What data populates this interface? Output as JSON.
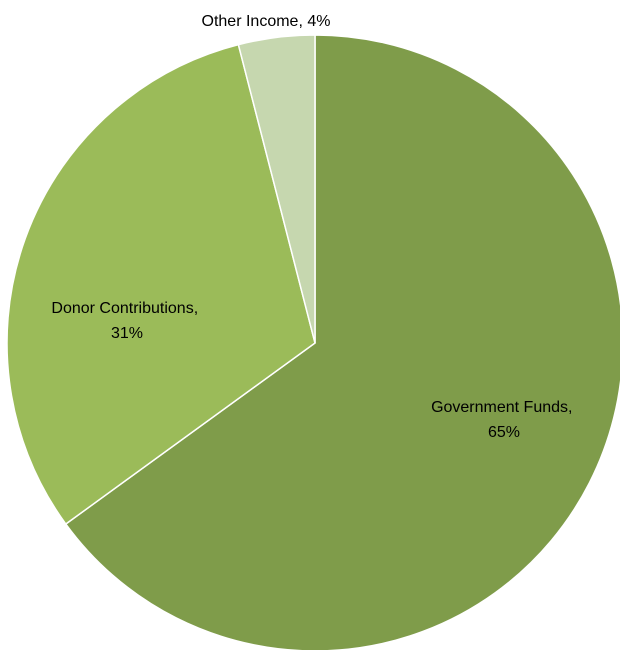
{
  "chart_data": {
    "type": "pie",
    "slices": [
      {
        "name": "Government Funds",
        "value": 65,
        "color": "#7f9c4a",
        "label_lines": [
          "Government Funds,",
          "65%"
        ]
      },
      {
        "name": "Donor Contributions",
        "value": 31,
        "color": "#9bbb59",
        "label_lines": [
          "Donor Contributions,",
          "31%"
        ]
      },
      {
        "name": "Other Income",
        "value": 4,
        "color": "#c6d7af",
        "label_lines": [
          "Other Income, 4%"
        ]
      }
    ],
    "start_angle_deg": 0,
    "direction": "clockwise",
    "slice_border_color": "#ffffff",
    "legend": "none"
  }
}
